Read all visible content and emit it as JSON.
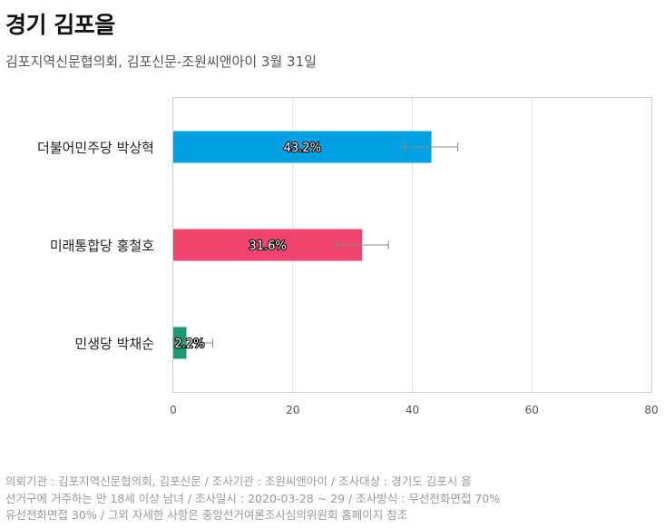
{
  "title": "경기 김포을",
  "subtitle": "김포지역신문협의회, 김포신문-조원씨앤아이 3월 31일",
  "chart_data": {
    "type": "bar",
    "orientation": "horizontal",
    "categories": [
      "더불어민주당 박상혁",
      "미래통합당 홍철호",
      "민생당 박채순"
    ],
    "values": [
      43.2,
      31.6,
      2.2
    ],
    "value_labels": [
      "43.2%",
      "31.6%",
      "2.2%"
    ],
    "error_low": [
      38.8,
      27.2,
      0.0
    ],
    "error_high": [
      47.6,
      36.0,
      6.6
    ],
    "colors": [
      "#00A0E2",
      "#F0436E",
      "#1E9A73"
    ],
    "xlim": [
      0,
      80
    ],
    "xticks": [
      "0",
      "20",
      "40",
      "60",
      "80"
    ],
    "grid": true
  },
  "footer": {
    "line1": "의뢰기관 : 김포지역신문협의회, 김포신문 / 조사기관 : 조원씨앤아이 / 조사대상 : 경기도 김포시 을",
    "line2": "선거구에 거주하는 만 18세 이상 남녀 / 조사일시 : 2020-03-28 ~ 29 / 조사방식 : 무선전화면접 70%",
    "line3": "유선전화면접 30% / 그외 자세한 사항은 중앙선거여론조사심의위원회 홈페이지 참조"
  }
}
